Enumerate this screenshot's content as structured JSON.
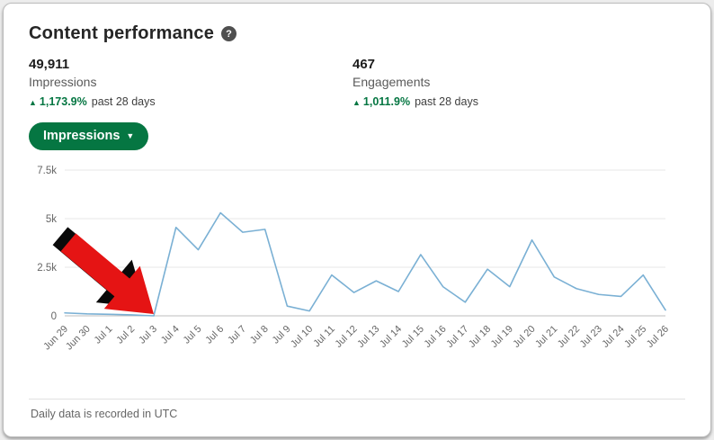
{
  "header": {
    "title": "Content performance",
    "help_icon": "?"
  },
  "stats": {
    "impressions": {
      "value": "49,911",
      "label": "Impressions",
      "trend_icon": "▲",
      "change": "1,173.9%",
      "period": "past 28 days"
    },
    "engagements": {
      "value": "467",
      "label": "Engagements",
      "trend_icon": "▲",
      "change": "1,011.9%",
      "period": "past 28 days"
    }
  },
  "controls": {
    "metric_dropdown_label": "Impressions",
    "metric_dropdown_caret": "▼"
  },
  "footer": {
    "note": "Daily data is recorded in UTC"
  },
  "colors": {
    "accent_green": "#057642",
    "chart_line": "#7ab0d4",
    "gridline": "#e7e7e7",
    "axis_zero_line": "#bdbdbd",
    "annotation_red": "#e51414",
    "annotation_outline": "#0a0a0a"
  },
  "chart_data": {
    "type": "line",
    "x": [
      "Jun 29",
      "Jun 30",
      "Jul 1",
      "Jul 2",
      "Jul 3",
      "Jul 4",
      "Jul 5",
      "Jul 6",
      "Jul 7",
      "Jul 8",
      "Jul 9",
      "Jul 10",
      "Jul 11",
      "Jul 12",
      "Jul 13",
      "Jul 14",
      "Jul 15",
      "Jul 16",
      "Jul 17",
      "Jul 18",
      "Jul 19",
      "Jul 20",
      "Jul 21",
      "Jul 22",
      "Jul 23",
      "Jul 24",
      "Jul 25",
      "Jul 26"
    ],
    "values": [
      150,
      100,
      80,
      50,
      0,
      4550,
      3400,
      5300,
      4300,
      4450,
      500,
      250,
      2100,
      1200,
      1800,
      1250,
      3150,
      1500,
      700,
      2400,
      1500,
      3900,
      2000,
      1400,
      1100,
      1000,
      2100,
      300
    ],
    "ylim": [
      0,
      7500
    ],
    "yticks": [
      0,
      2500,
      5000,
      7500
    ],
    "ytick_labels": [
      "0",
      "2.5k",
      "5k",
      "7.5k"
    ],
    "grid": true,
    "legend": false,
    "annotation": {
      "type": "arrow",
      "points_at": "Jul 3",
      "description": "red arrow with black outline pointing at the Jul 3 zero point"
    }
  }
}
